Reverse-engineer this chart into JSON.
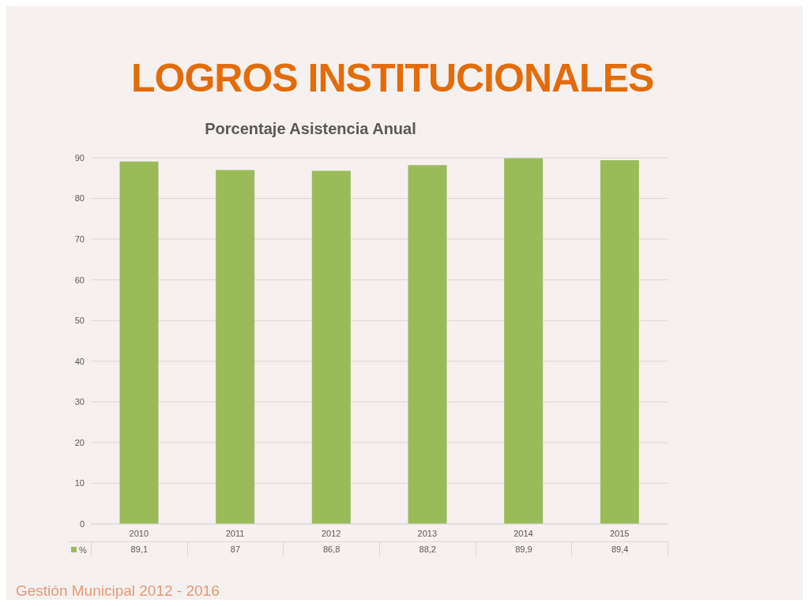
{
  "chart_data": {
    "type": "bar",
    "title": "LOGROS INSTITUCIONALES",
    "subtitle": "Porcentaje Asistencia Anual",
    "categories": [
      "2010",
      "2011",
      "2012",
      "2013",
      "2014",
      "2015"
    ],
    "series": [
      {
        "name": "%",
        "color": "#9bbb59",
        "values": [
          89.1,
          87,
          86.8,
          88.2,
          89.9,
          89.4
        ],
        "value_labels": [
          "89,1",
          "87",
          "86,8",
          "88,2",
          "89,9",
          "89,4"
        ]
      }
    ],
    "ylim": [
      0,
      90
    ],
    "yticks": [
      0,
      10,
      20,
      30,
      40,
      50,
      60,
      70,
      80,
      90
    ],
    "grid": "y",
    "legend": "bottom",
    "annotations": [
      "Gestión Municipal 2012 - 2016"
    ]
  }
}
